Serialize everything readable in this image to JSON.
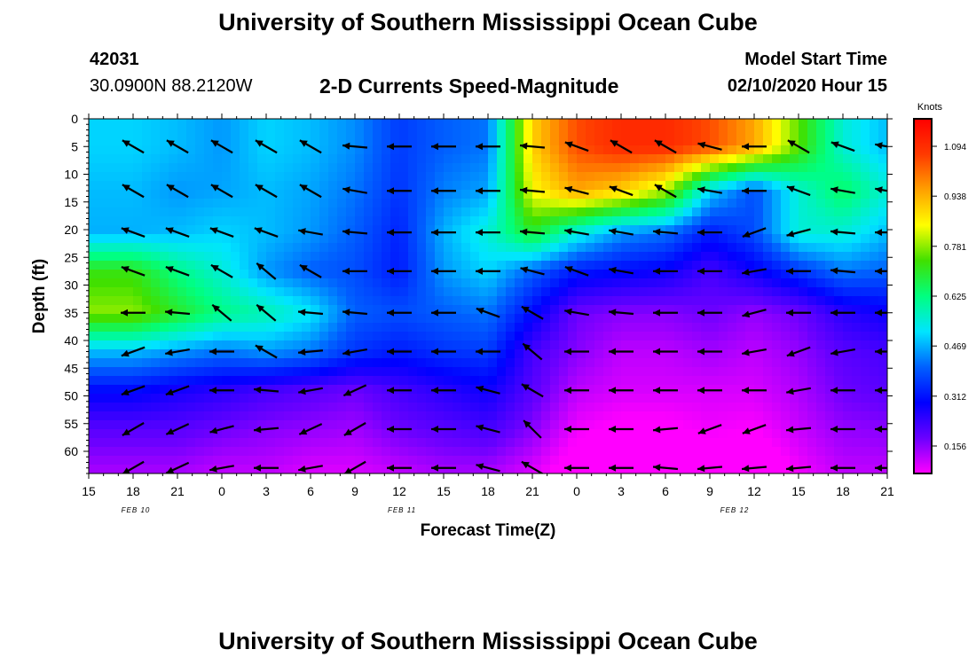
{
  "titles": {
    "top": "University of Southern Mississippi Ocean Cube",
    "bottom": "University of Southern Mississippi Ocean Cube"
  },
  "header": {
    "station_id": "42031",
    "coordinates": "30.0900N 88.2120W",
    "subtitle": "2-D Currents Speed-Magnitude",
    "model_label": "Model Start Time",
    "model_time": "02/10/2020 Hour 15"
  },
  "colors": {
    "background": "#ffffff",
    "arrow": "#000000",
    "scale": [
      "#ff00ff",
      "#6a00ff",
      "#0000ff",
      "#0060ff",
      "#00e5ff",
      "#00ff80",
      "#40e000",
      "#ffff00",
      "#ffa000",
      "#ff3a00",
      "#ff0000"
    ]
  },
  "chart_data": {
    "type": "heatmap",
    "title": "2-D Currents Speed-Magnitude",
    "xlabel": "Forecast Time(Z)",
    "ylabel": "Depth (ft)",
    "x_tick_labels": [
      "15",
      "18",
      "21",
      "0",
      "3",
      "6",
      "9",
      "12",
      "15",
      "18",
      "21",
      "0",
      "3",
      "6",
      "9",
      "12",
      "15",
      "18",
      "21"
    ],
    "date_labels": [
      {
        "label": "FEB 10",
        "at_tick": 1
      },
      {
        "label": "FEB 11",
        "at_tick": 7
      },
      {
        "label": "FEB 12",
        "at_tick": 14.5
      }
    ],
    "y_ticks": [
      0,
      5,
      10,
      15,
      20,
      25,
      30,
      35,
      40,
      45,
      50,
      55,
      60
    ],
    "ylim": [
      0,
      64
    ],
    "colorbar": {
      "label": "Knots",
      "ticks": [
        0.156,
        0.312,
        0.469,
        0.625,
        0.781,
        0.938,
        1.094
      ],
      "range": [
        0.07,
        1.18
      ]
    },
    "depth_rows": [
      5,
      13,
      20.5,
      27.5,
      35,
      42,
      49,
      56,
      63
    ],
    "time_cols": [
      1,
      2,
      3,
      4,
      5,
      6,
      7,
      8,
      9,
      10,
      11,
      12,
      13,
      14,
      15,
      16,
      17,
      18
    ],
    "speed_knots": [
      [
        0.5,
        0.48,
        0.45,
        0.5,
        0.48,
        0.44,
        0.36,
        0.4,
        0.42,
        0.9,
        1.05,
        1.1,
        1.1,
        1.05,
        0.95,
        0.75,
        0.55,
        0.48
      ],
      [
        0.48,
        0.45,
        0.46,
        0.48,
        0.46,
        0.42,
        0.35,
        0.43,
        0.46,
        0.85,
        0.95,
        0.9,
        0.8,
        0.5,
        0.38,
        0.55,
        0.65,
        0.55
      ],
      [
        0.47,
        0.48,
        0.5,
        0.48,
        0.45,
        0.4,
        0.33,
        0.47,
        0.55,
        0.7,
        0.55,
        0.45,
        0.42,
        0.32,
        0.38,
        0.55,
        0.55,
        0.48
      ],
      [
        0.72,
        0.62,
        0.55,
        0.45,
        0.4,
        0.38,
        0.32,
        0.45,
        0.5,
        0.4,
        0.32,
        0.3,
        0.28,
        0.22,
        0.28,
        0.35,
        0.42,
        0.4
      ],
      [
        0.78,
        0.7,
        0.62,
        0.58,
        0.52,
        0.4,
        0.38,
        0.4,
        0.42,
        0.3,
        0.18,
        0.16,
        0.16,
        0.18,
        0.15,
        0.18,
        0.25,
        0.28
      ],
      [
        0.48,
        0.45,
        0.42,
        0.45,
        0.42,
        0.35,
        0.32,
        0.35,
        0.36,
        0.22,
        0.16,
        0.12,
        0.12,
        0.14,
        0.12,
        0.15,
        0.2,
        0.22
      ],
      [
        0.3,
        0.27,
        0.25,
        0.22,
        0.2,
        0.18,
        0.22,
        0.25,
        0.28,
        0.2,
        0.12,
        0.1,
        0.1,
        0.1,
        0.1,
        0.13,
        0.18,
        0.2
      ],
      [
        0.2,
        0.2,
        0.18,
        0.16,
        0.15,
        0.14,
        0.18,
        0.2,
        0.22,
        0.16,
        0.08,
        0.06,
        0.06,
        0.08,
        0.07,
        0.11,
        0.15,
        0.16
      ],
      [
        0.14,
        0.14,
        0.12,
        0.12,
        0.1,
        0.1,
        0.12,
        0.14,
        0.14,
        0.1,
        0.04,
        0.02,
        0.02,
        0.04,
        0.03,
        0.08,
        0.12,
        0.12
      ]
    ],
    "direction_deg": [
      [
        150,
        150,
        150,
        150,
        150,
        175,
        180,
        180,
        180,
        175,
        160,
        150,
        150,
        165,
        180,
        150,
        160,
        170
      ],
      [
        150,
        150,
        150,
        150,
        150,
        170,
        180,
        180,
        180,
        175,
        165,
        160,
        150,
        170,
        180,
        160,
        170,
        170
      ],
      [
        160,
        160,
        160,
        160,
        170,
        175,
        180,
        180,
        180,
        175,
        170,
        170,
        175,
        180,
        200,
        195,
        175,
        180
      ],
      [
        160,
        160,
        150,
        140,
        150,
        180,
        180,
        180,
        180,
        165,
        160,
        170,
        180,
        180,
        190,
        180,
        175,
        180
      ],
      [
        180,
        175,
        140,
        140,
        175,
        175,
        180,
        180,
        160,
        150,
        170,
        175,
        180,
        180,
        195,
        180,
        180,
        180
      ],
      [
        200,
        190,
        180,
        150,
        185,
        190,
        180,
        180,
        180,
        140,
        180,
        180,
        180,
        180,
        190,
        200,
        190,
        180
      ],
      [
        200,
        200,
        180,
        175,
        190,
        205,
        180,
        180,
        165,
        150,
        180,
        180,
        180,
        180,
        180,
        190,
        180,
        180
      ],
      [
        210,
        205,
        195,
        185,
        205,
        210,
        180,
        180,
        165,
        135,
        180,
        180,
        185,
        200,
        200,
        185,
        180,
        180
      ],
      [
        210,
        205,
        190,
        180,
        190,
        210,
        180,
        180,
        165,
        150,
        180,
        180,
        175,
        185,
        185,
        185,
        180,
        180
      ]
    ]
  }
}
